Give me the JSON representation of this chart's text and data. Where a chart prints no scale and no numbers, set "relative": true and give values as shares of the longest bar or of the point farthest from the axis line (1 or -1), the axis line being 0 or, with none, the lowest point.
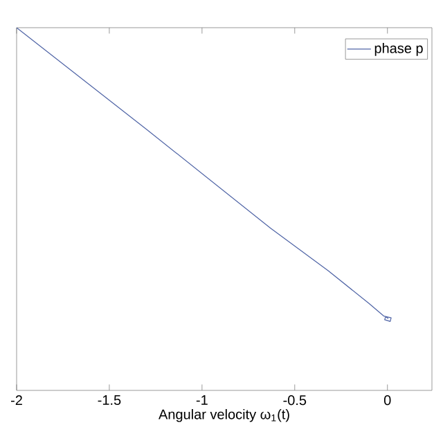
{
  "chart_data": {
    "type": "line",
    "xlabel": "Angular velocity ω$_{1}$(t)",
    "relative": true,
    "tick_labels": "x",
    "xlim": [
      -2,
      0.24
    ],
    "xticks": [
      -2,
      -1.5,
      -1,
      -0.5,
      0
    ],
    "series": [
      {
        "name": "phase p",
        "color": "#4f64a6",
        "x": [
          -2,
          -1.3,
          -0.63,
          -0.32,
          -0.1,
          -0.02,
          0.02,
          0.015,
          -0.015,
          -0.01,
          0.005
        ],
        "values": [
          1,
          0.72,
          0.447,
          0.33,
          0.24,
          0.205,
          0.2,
          0.19,
          0.195,
          0.203,
          0.198
        ]
      }
    ],
    "legend": "top right",
    "marker": "none",
    "line_style": "solid",
    "grid": false
  }
}
